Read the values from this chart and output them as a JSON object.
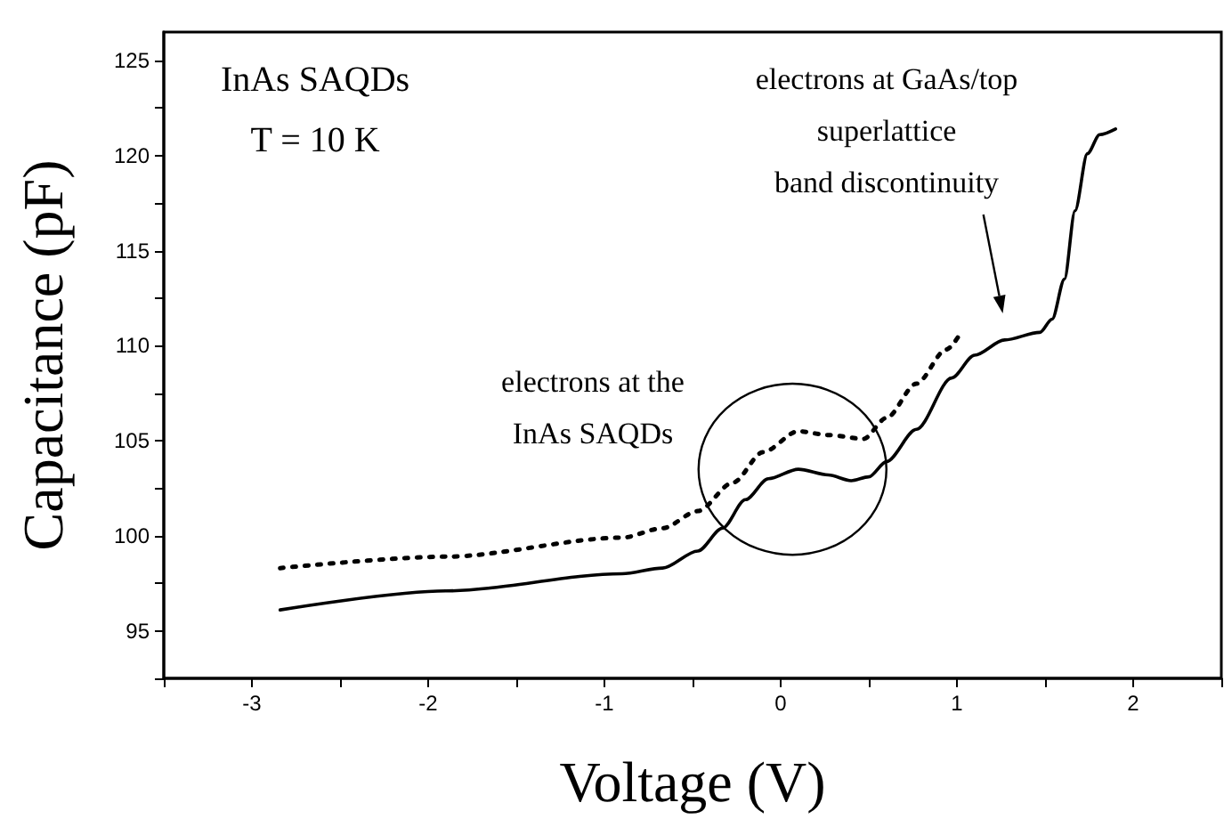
{
  "chart_data": {
    "type": "line",
    "xlabel": "Voltage (V)",
    "ylabel": "Capacitance (pF)",
    "xlim": [
      -3.5,
      2.5
    ],
    "ylim": [
      92.5,
      126.5
    ],
    "xticks": [
      {
        "value": -3.5,
        "label": null
      },
      -3,
      {
        "value": -2.5,
        "label": null
      },
      -2,
      {
        "value": -1.5,
        "label": null
      },
      -1,
      {
        "value": -0.5,
        "label": null
      },
      0,
      {
        "value": 0.5,
        "label": null
      },
      1,
      {
        "value": 1.5,
        "label": null
      },
      2,
      {
        "value": 2.5,
        "label": null
      }
    ],
    "yticks": [
      {
        "value": 92.5,
        "label": null
      },
      95,
      {
        "value": 97.5,
        "label": null
      },
      100,
      {
        "value": 102.5,
        "label": null
      },
      105,
      {
        "value": 107.5,
        "label": null
      },
      110,
      {
        "value": 112.5,
        "label": null
      },
      115,
      {
        "value": 117.5,
        "label": null
      },
      120,
      {
        "value": 122.5,
        "label": null
      },
      125
    ],
    "grid": false,
    "marker": "none",
    "annotations": [
      "InAs SAQDs\nT = 10 K",
      "electrons at GaAs/top\nsuperlattice\nband discontinuity",
      "electrons at the\nInAs SAQDs"
    ],
    "series": [
      {
        "color": "#000000",
        "line_style": "solid",
        "x": [
          -2.84,
          -1.9,
          -0.9,
          -0.67,
          -0.47,
          -0.33,
          -0.2,
          -0.07,
          0.1,
          0.27,
          0.4,
          0.5,
          0.6,
          0.77,
          0.97,
          1.1,
          1.27,
          1.47,
          1.54,
          1.61,
          1.67,
          1.74,
          1.81,
          1.9
        ],
        "values": [
          96.1,
          97.1,
          98.0,
          98.3,
          99.2,
          100.4,
          101.9,
          103.0,
          103.5,
          103.2,
          102.9,
          103.1,
          103.9,
          105.6,
          108.3,
          109.5,
          110.3,
          110.7,
          111.4,
          113.5,
          117.1,
          120.1,
          121.1,
          121.4
        ]
      },
      {
        "color": "#000000",
        "line_style": "dotted",
        "x": [
          -2.84,
          -1.9,
          -0.9,
          -0.67,
          -0.47,
          -0.27,
          -0.1,
          0.1,
          0.27,
          0.47,
          0.6,
          0.77,
          0.94,
          1.03
        ],
        "values": [
          98.3,
          98.9,
          99.9,
          100.4,
          101.3,
          102.8,
          104.4,
          105.5,
          105.3,
          105.1,
          106.2,
          108.0,
          109.8,
          110.8
        ]
      }
    ]
  }
}
